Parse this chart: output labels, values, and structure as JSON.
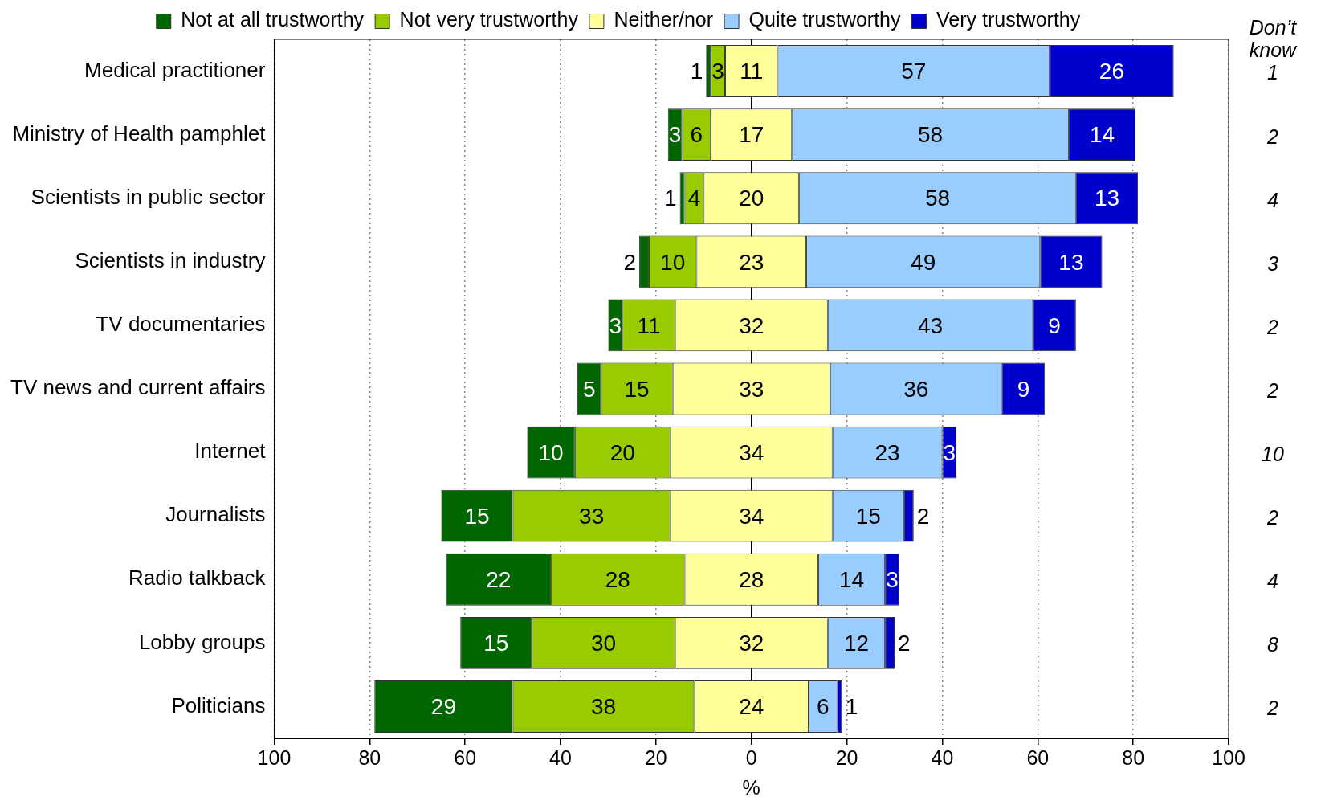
{
  "chart_data": {
    "type": "bar",
    "orientation": "horizontal",
    "xlabel": "%",
    "categories": [
      "Medical practitioner",
      "Ministry of Health pamphlet",
      "Scientists in public sector",
      "Scientists in industry",
      "TV documentaries",
      "TV news and current affairs",
      "Internet",
      "Journalists",
      "Radio talkback",
      "Lobby groups",
      "Politicians"
    ],
    "series": [
      {
        "name": "Not at all trustworthy",
        "color": "#006600",
        "values": [
          1,
          3,
          1,
          2,
          3,
          5,
          10,
          15,
          22,
          15,
          29
        ],
        "base": [
          -9.5,
          -17.5,
          -15,
          -23.5,
          -30,
          -36.5,
          -47,
          -65,
          -64,
          -61,
          -79
        ]
      },
      {
        "name": "Not very trustworthy",
        "color": "#99cc00",
        "values": [
          3,
          6,
          4,
          10,
          11,
          15,
          20,
          33,
          28,
          30,
          38
        ],
        "base": [
          -8.5,
          -14.5,
          -14,
          -21.5,
          -27,
          -31.5,
          -37,
          -50,
          -42,
          -46,
          -50
        ]
      },
      {
        "name": "Neither/nor",
        "color": "#ffff99",
        "values": [
          11,
          17,
          20,
          23,
          32,
          33,
          34,
          34,
          28,
          32,
          24
        ],
        "base": [
          -5.5,
          -8.5,
          -10,
          -11.5,
          -16,
          -16.5,
          -17,
          -17,
          -14,
          -16,
          -12
        ]
      },
      {
        "name": "Quite trustworthy",
        "color": "#99ccff",
        "values": [
          57,
          58,
          58,
          49,
          43,
          36,
          23,
          15,
          14,
          12,
          6
        ],
        "base": [
          5.5,
          8.5,
          10,
          11.5,
          16,
          16.5,
          17,
          17,
          14,
          16,
          12
        ]
      },
      {
        "name": "Very trustworthy",
        "color": "#0000cc",
        "values": [
          26,
          14,
          13,
          13,
          9,
          9,
          3,
          2,
          3,
          2,
          1
        ],
        "base": [
          62.5,
          66.5,
          68,
          60.5,
          59,
          52.5,
          40,
          32,
          28,
          28,
          18
        ]
      }
    ],
    "xlim": [
      -100,
      100
    ],
    "xticks": [
      {
        "value": -100,
        "label": "100"
      },
      {
        "value": -80,
        "label": "80"
      },
      {
        "value": -60,
        "label": "60"
      },
      {
        "value": -40,
        "label": "40"
      },
      {
        "value": -20,
        "label": "20"
      },
      0,
      20,
      40,
      60,
      80,
      100
    ],
    "grid": "x",
    "legend": "top",
    "data_labels": true,
    "annotations": [
      "Don’t know",
      "1",
      "2",
      "4",
      "3",
      "2",
      "2",
      "10",
      "2",
      "4",
      "8",
      "2"
    ]
  }
}
